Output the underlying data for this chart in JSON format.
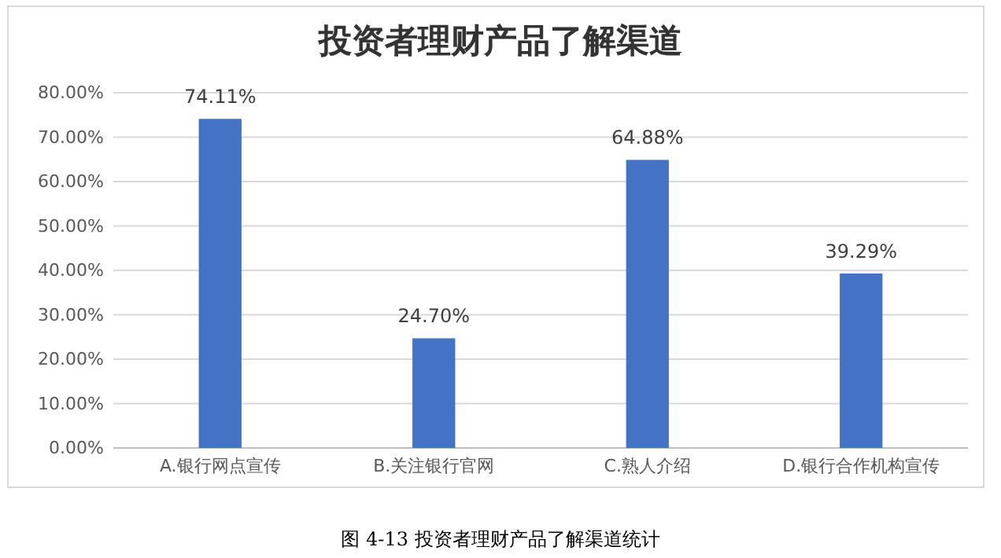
{
  "chart_data": {
    "type": "bar",
    "title": "投资者理财产品了解渠道",
    "categories": [
      "A.银行网点宣传",
      "B.关注银行官网",
      "C.熟人介绍",
      "D.银行合作机构宣传"
    ],
    "values": [
      74.11,
      24.7,
      64.88,
      39.29
    ],
    "value_labels": [
      "74.11%",
      "24.70%",
      "64.88%",
      "39.29%"
    ],
    "color": "#4472c4",
    "ylim": [
      0,
      80
    ],
    "yticks": [
      {
        "value": 0,
        "label": "0.00%"
      },
      {
        "value": 10,
        "label": "10.00%"
      },
      {
        "value": 20,
        "label": "20.00%"
      },
      {
        "value": 30,
        "label": "30.00%"
      },
      {
        "value": 40,
        "label": "40.00%"
      },
      {
        "value": 50,
        "label": "50.00%"
      },
      {
        "value": 60,
        "label": "60.00%"
      },
      {
        "value": 70,
        "label": "70.00%"
      },
      {
        "value": 80,
        "label": "80.00%"
      }
    ],
    "grid": "y",
    "annotations": [
      "图 4-13  投资者理财产品了解渠道统计"
    ]
  }
}
